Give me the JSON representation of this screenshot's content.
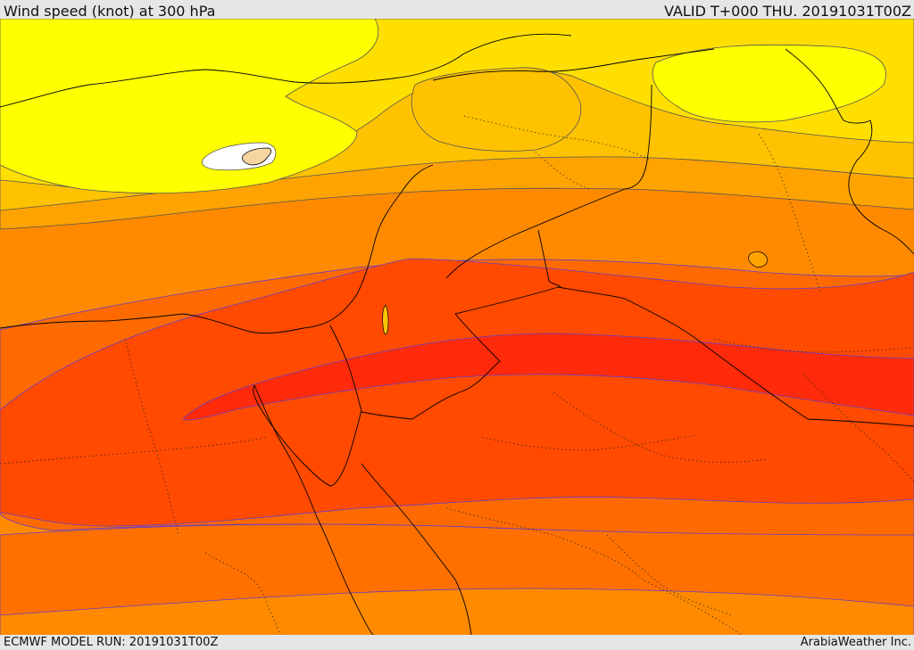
{
  "header": {
    "title": "Wind speed (knot) at 300 hPa",
    "valid": "VALID T+000 THU. 20191031T00Z"
  },
  "footer": {
    "model_run": "ECMWF MODEL RUN: 20191031T00Z",
    "brand": "ArabiaWeather Inc."
  },
  "colors": {
    "band_lt30": "#ffffff",
    "band_30_40": "#ffff00",
    "band_40_50": "#ffdf00",
    "band_50_60": "#ffc200",
    "band_60_70": "#ffa300",
    "band_70_80": "#ff8a00",
    "band_80_90": "#ff6a00",
    "band_90_100": "#ff4a00",
    "band_100_110": "#ff2a0a",
    "contour": "#555555",
    "coastline": "#000000"
  }
}
